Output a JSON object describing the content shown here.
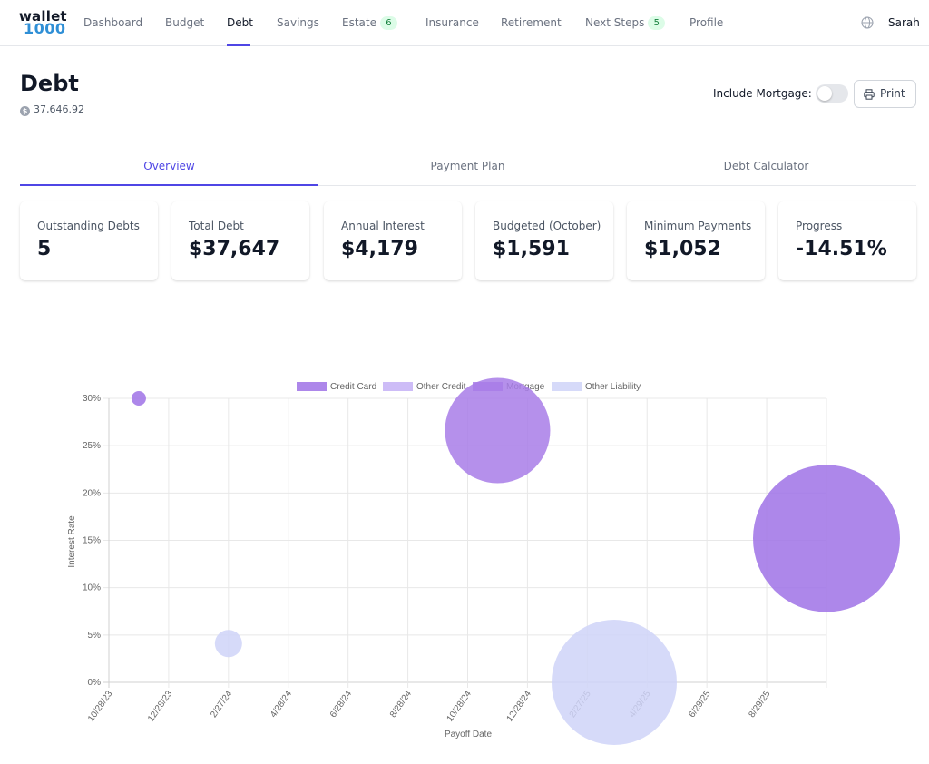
{
  "app": {
    "logo_top": "wallet",
    "logo_bottom": "1000"
  },
  "nav": {
    "items": [
      {
        "label": "Dashboard"
      },
      {
        "label": "Budget"
      },
      {
        "label": "Debt"
      },
      {
        "label": "Savings"
      },
      {
        "label": "Estate",
        "badge": "6"
      },
      {
        "label": "Insurance"
      },
      {
        "label": "Retirement"
      },
      {
        "label": "Next Steps",
        "badge": "5"
      },
      {
        "label": "Profile"
      }
    ],
    "active": "Debt",
    "user": "Sarah",
    "globe_icon": "globe-icon"
  },
  "header": {
    "title": "Debt",
    "total": "37,646.92",
    "total_icon": "dollar-coin-icon",
    "mortgage_label": "Include Mortgage:",
    "mortgage_on": false,
    "print_label": "Print",
    "print_icon": "printer-icon"
  },
  "tabs": [
    {
      "label": "Overview",
      "active": true
    },
    {
      "label": "Payment Plan",
      "active": false
    },
    {
      "label": "Debt Calculator",
      "active": false
    }
  ],
  "stats": [
    {
      "label": "Outstanding Debts",
      "value": "5"
    },
    {
      "label": "Total Debt",
      "value": "$37,647"
    },
    {
      "label": "Annual Interest",
      "value": "$4,179"
    },
    {
      "label": "Budgeted (October)",
      "value": "$1,591"
    },
    {
      "label": "Minimum Payments",
      "value": "$1,052"
    },
    {
      "label": "Progress",
      "value": "-14.51%"
    }
  ],
  "colors": {
    "accent": "#4f46e5",
    "credit_card": "#9f72e6",
    "other_credit": "#c4b0f6",
    "mortgage": "#a87de8",
    "other_liability": "#cfd4f8"
  },
  "chart_data": {
    "type": "bubble",
    "xlabel": "Payoff Date",
    "ylabel": "Interest Rate",
    "x_ticks": [
      "10/28/23",
      "12/28/23",
      "2/27/24",
      "4/28/24",
      "6/28/24",
      "8/28/24",
      "10/28/24",
      "12/28/24",
      "2/27/25",
      "4/29/25",
      "6/29/25",
      "8/29/25"
    ],
    "y_ticks": [
      "0%",
      "5%",
      "10%",
      "15%",
      "20%",
      "25%",
      "30%"
    ],
    "ylim": [
      0,
      30
    ],
    "x_range": [
      0,
      12
    ],
    "legend_position": "top",
    "grid": true,
    "series": [
      {
        "name": "Credit Card",
        "color": "#9f72e6",
        "points": [
          {
            "x": 0.5,
            "y": 30,
            "r": 8
          },
          {
            "x": 12,
            "y": 15.2,
            "r": 81
          }
        ]
      },
      {
        "name": "Other Credit",
        "color": "#c4b0f6",
        "points": []
      },
      {
        "name": "Mortgage",
        "color": "#a87de8",
        "points": [
          {
            "x": 6.5,
            "y": 26.6,
            "r": 58
          }
        ]
      },
      {
        "name": "Other Liability",
        "color": "#cfd4f8",
        "points": [
          {
            "x": 2,
            "y": 4.1,
            "r": 15
          },
          {
            "x": 8.45,
            "y": 0,
            "r": 69
          }
        ]
      }
    ]
  }
}
